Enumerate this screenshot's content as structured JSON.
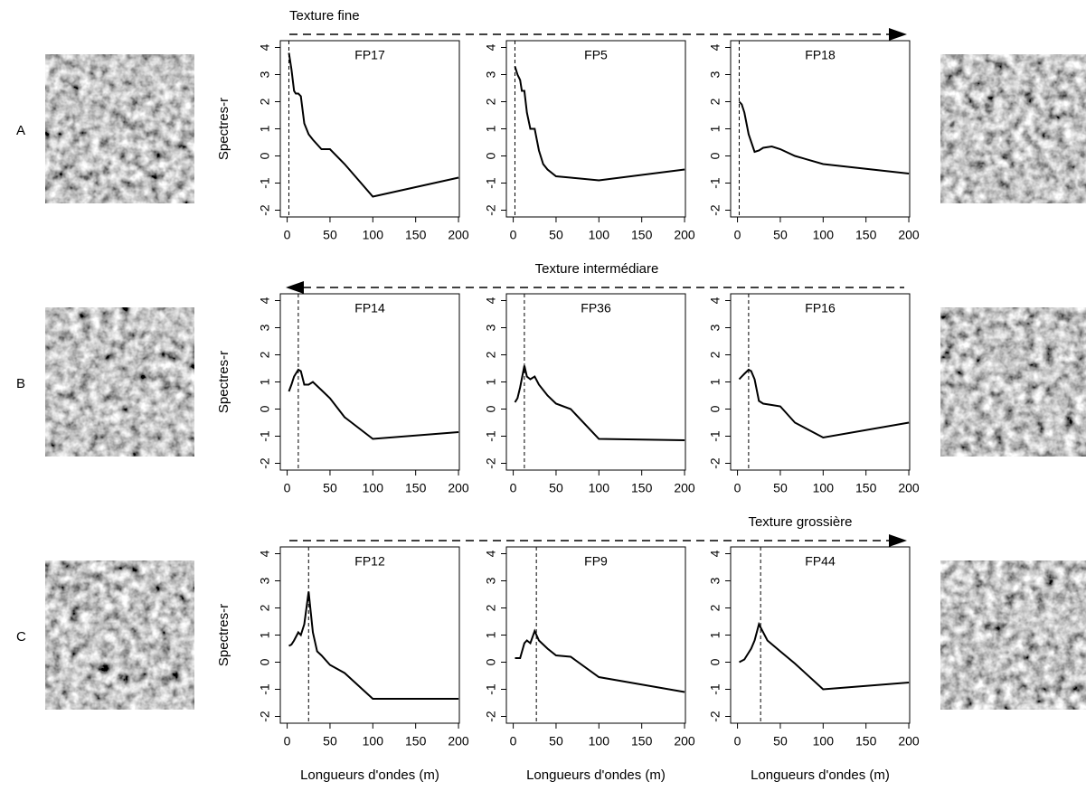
{
  "chart_data": [
    {
      "type": "line",
      "title": "FP17",
      "ylabel": "Spectres-r",
      "x": [
        2,
        5,
        8,
        10,
        13,
        16,
        20,
        25,
        30,
        40,
        50,
        67,
        100,
        200
      ],
      "values": [
        3.8,
        3.2,
        2.4,
        2.3,
        2.3,
        2.2,
        1.2,
        0.8,
        0.6,
        0.25,
        0.25,
        -0.3,
        -1.5,
        -0.8
      ],
      "vline": 2,
      "color": "#000000",
      "xlim": [
        -8,
        201
      ],
      "ylim": [
        -2.25,
        4.25
      ],
      "xticks": [
        0,
        50,
        100,
        150,
        200
      ],
      "yticks": [
        -2,
        -1,
        0,
        1,
        2,
        3,
        4
      ]
    },
    {
      "type": "line",
      "title": "FP5",
      "x": [
        2,
        5,
        8,
        10,
        13,
        16,
        20,
        25,
        30,
        35,
        40,
        50,
        67,
        100,
        200
      ],
      "values": [
        3.3,
        3.0,
        2.8,
        2.4,
        2.4,
        1.6,
        1.0,
        1.0,
        0.2,
        -0.3,
        -0.5,
        -0.75,
        -0.8,
        -0.9,
        -0.5
      ],
      "vline": 2,
      "color": "#000000",
      "xlim": [
        -8,
        201
      ],
      "ylim": [
        -2.25,
        4.25
      ],
      "xticks": [
        0,
        50,
        100,
        150,
        200
      ],
      "yticks": [
        -2,
        -1,
        0,
        1,
        2,
        3,
        4
      ]
    },
    {
      "type": "line",
      "title": "FP18",
      "x": [
        2,
        5,
        8,
        13,
        20,
        25,
        30,
        40,
        50,
        67,
        100,
        200
      ],
      "values": [
        2.0,
        1.9,
        1.6,
        0.8,
        0.15,
        0.2,
        0.3,
        0.35,
        0.25,
        0,
        -0.3,
        -0.65
      ],
      "vline": 2,
      "color": "#000000",
      "xlim": [
        -8,
        201
      ],
      "ylim": [
        -2.25,
        4.25
      ],
      "xticks": [
        0,
        50,
        100,
        150,
        200
      ],
      "yticks": [
        -2,
        -1,
        0,
        1,
        2,
        3,
        4
      ]
    },
    {
      "type": "line",
      "title": "FP14",
      "ylabel": "Spectres-r",
      "x": [
        2,
        5,
        8,
        13,
        16,
        20,
        25,
        30,
        40,
        50,
        67,
        100,
        200
      ],
      "values": [
        0.65,
        0.9,
        1.2,
        1.45,
        1.4,
        0.9,
        0.9,
        1.0,
        0.7,
        0.4,
        -0.3,
        -1.1,
        -0.85
      ],
      "vline": 13,
      "color": "#000000",
      "xlim": [
        -8,
        201
      ],
      "ylim": [
        -2.25,
        4.25
      ],
      "xticks": [
        0,
        50,
        100,
        150,
        200
      ],
      "yticks": [
        -2,
        -1,
        0,
        1,
        2,
        3,
        4
      ]
    },
    {
      "type": "line",
      "title": "FP36",
      "x": [
        2,
        5,
        8,
        13,
        16,
        20,
        25,
        30,
        40,
        50,
        67,
        100,
        200
      ],
      "values": [
        0.25,
        0.4,
        0.8,
        1.6,
        1.2,
        1.1,
        1.2,
        0.9,
        0.5,
        0.2,
        0,
        -1.1,
        -1.15
      ],
      "vline": 13,
      "color": "#000000",
      "xlim": [
        -8,
        201
      ],
      "ylim": [
        -2.25,
        4.25
      ],
      "xticks": [
        0,
        50,
        100,
        150,
        200
      ],
      "yticks": [
        -2,
        -1,
        0,
        1,
        2,
        3,
        4
      ]
    },
    {
      "type": "line",
      "title": "FP16",
      "x": [
        2,
        5,
        8,
        13,
        16,
        20,
        25,
        30,
        40,
        50,
        67,
        100,
        200
      ],
      "values": [
        1.1,
        1.2,
        1.3,
        1.45,
        1.4,
        1.1,
        0.3,
        0.2,
        0.15,
        0.1,
        -0.5,
        -1.05,
        -0.5
      ],
      "vline": 13,
      "color": "#000000",
      "xlim": [
        -8,
        201
      ],
      "ylim": [
        -2.25,
        4.25
      ],
      "xticks": [
        0,
        50,
        100,
        150,
        200
      ],
      "yticks": [
        -2,
        -1,
        0,
        1,
        2,
        3,
        4
      ]
    },
    {
      "type": "line",
      "title": "FP12",
      "ylabel": "Spectres-r",
      "xlabel": "Longueurs d'ondes (m)",
      "x": [
        2,
        5,
        8,
        13,
        16,
        20,
        25,
        30,
        35,
        40,
        50,
        67,
        100,
        200
      ],
      "values": [
        0.6,
        0.65,
        0.8,
        1.1,
        1.0,
        1.4,
        2.6,
        1.1,
        0.4,
        0.25,
        -0.1,
        -0.4,
        -1.35,
        -1.35
      ],
      "vline": 25,
      "color": "#000000",
      "xlim": [
        -8,
        201
      ],
      "ylim": [
        -2.25,
        4.25
      ],
      "xticks": [
        0,
        50,
        100,
        150,
        200
      ],
      "yticks": [
        -2,
        -1,
        0,
        1,
        2,
        3,
        4
      ]
    },
    {
      "type": "line",
      "title": "FP9",
      "xlabel": "Longueurs d'ondes (m)",
      "x": [
        2,
        8,
        13,
        16,
        20,
        25,
        30,
        40,
        50,
        67,
        100,
        200
      ],
      "values": [
        0.15,
        0.15,
        0.7,
        0.8,
        0.7,
        1.15,
        0.8,
        0.5,
        0.25,
        0.2,
        -0.55,
        -1.1
      ],
      "vline": 27,
      "color": "#000000",
      "xlim": [
        -8,
        201
      ],
      "ylim": [
        -2.25,
        4.25
      ],
      "xticks": [
        0,
        50,
        100,
        150,
        200
      ],
      "yticks": [
        -2,
        -1,
        0,
        1,
        2,
        3,
        4
      ]
    },
    {
      "type": "line",
      "title": "FP44",
      "xlabel": "Longueurs d'ondes (m)",
      "x": [
        2,
        8,
        13,
        16,
        20,
        25,
        30,
        35,
        50,
        67,
        100,
        200
      ],
      "values": [
        0,
        0.1,
        0.35,
        0.5,
        0.8,
        1.4,
        1.1,
        0.8,
        0.4,
        -0.05,
        -1.0,
        -0.75
      ],
      "vline": 27,
      "color": "#000000",
      "xlim": [
        -8,
        201
      ],
      "ylim": [
        -2.25,
        4.25
      ],
      "xticks": [
        0,
        50,
        100,
        150,
        200
      ],
      "yticks": [
        -2,
        -1,
        0,
        1,
        2,
        3,
        4
      ]
    }
  ],
  "rows": [
    "A",
    "B",
    "C"
  ],
  "arrows": [
    {
      "label": "Texture fine",
      "direction": "right"
    },
    {
      "label": "Texture intermédiare",
      "direction": "left"
    },
    {
      "label": "Texture grossière",
      "direction": "right"
    }
  ]
}
